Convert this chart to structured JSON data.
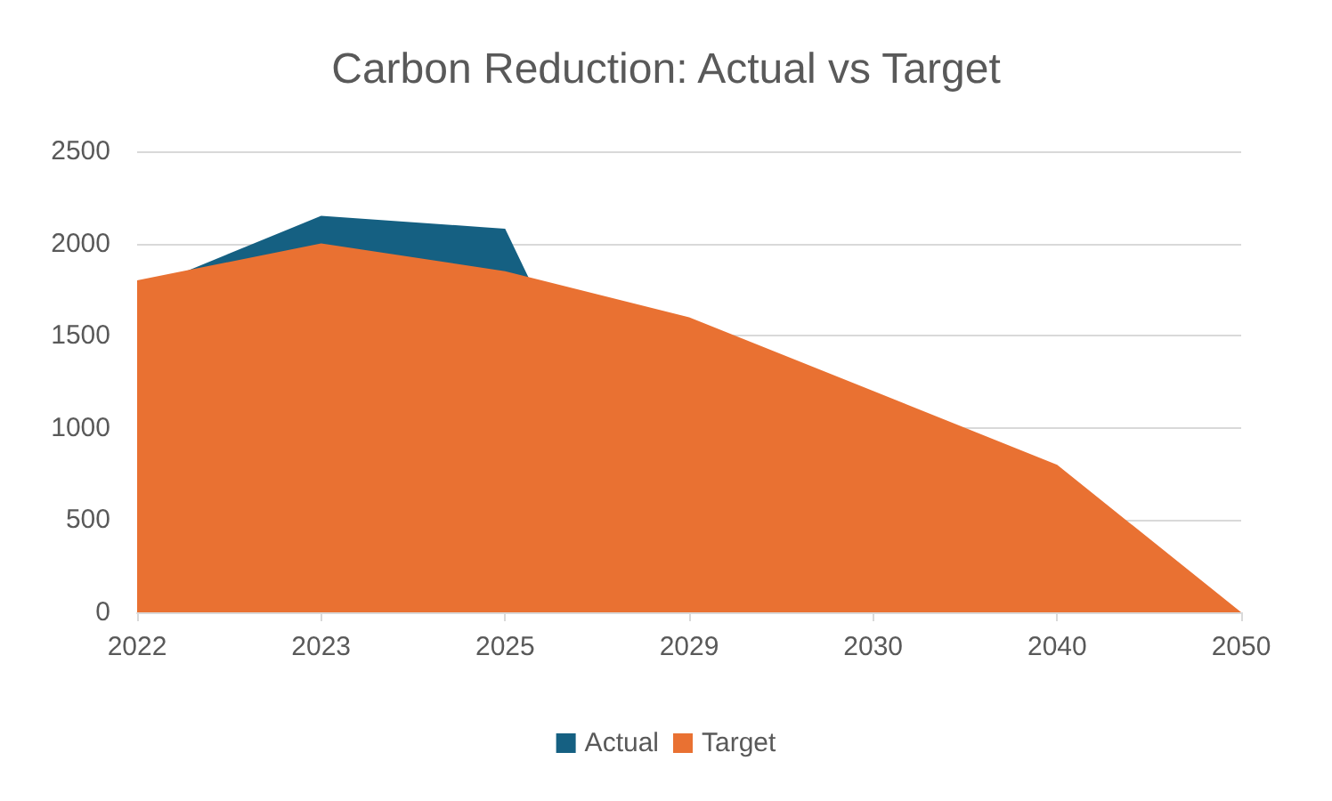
{
  "chart_data": {
    "type": "area",
    "title": "Carbon Reduction: Actual vs Target",
    "categories": [
      "2022",
      "2023",
      "2025",
      "2029",
      "2030",
      "2040",
      "2050"
    ],
    "series": [
      {
        "name": "Actual",
        "color": "#156082",
        "values": [
          1740,
          2150,
          2080,
          0,
          0,
          0,
          0
        ]
      },
      {
        "name": "Target",
        "color": "#e97132",
        "values": [
          1800,
          2000,
          1850,
          1600,
          1200,
          800,
          0
        ]
      }
    ],
    "ylim": [
      0,
      2500
    ],
    "yticks": [
      0,
      500,
      1000,
      1500,
      2000,
      2500
    ],
    "grid": "y",
    "legend": "bottom"
  }
}
